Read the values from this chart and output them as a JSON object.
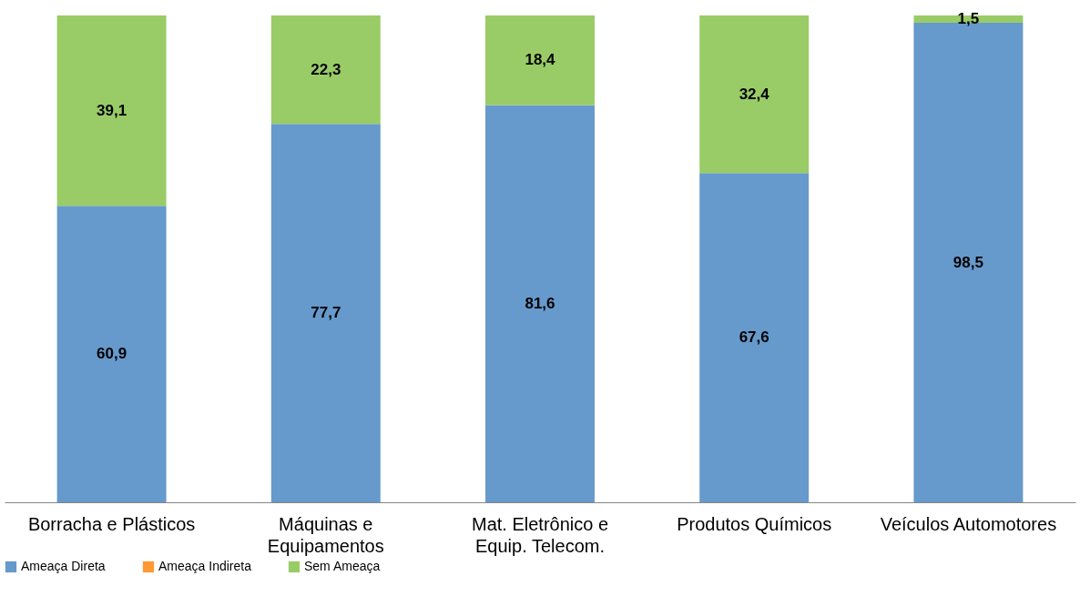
{
  "chart_data": {
    "type": "bar",
    "stacked": true,
    "categories": [
      "Borracha e Plásticos",
      "Máquinas e Equipamentos",
      "Mat. Eletrônico e Equip. Telecom.",
      "Produtos Químicos",
      "Veículos Automotores"
    ],
    "series": [
      {
        "name": "Ameaça Direta",
        "color": "#6699cc",
        "values": [
          60.9,
          77.7,
          81.6,
          67.6,
          98.5
        ],
        "value_labels": [
          "60,9",
          "77,7",
          "81,6",
          "67,6",
          "98,5"
        ]
      },
      {
        "name": "Ameaça Indireta",
        "color": "#ff9933",
        "values": [
          0,
          0,
          0,
          0,
          0
        ],
        "value_labels": [
          null,
          null,
          null,
          null,
          null
        ]
      },
      {
        "name": "Sem Ameaça",
        "color": "#99cc66",
        "values": [
          39.1,
          22.3,
          18.4,
          32.4,
          1.5
        ],
        "value_labels": [
          "39,1",
          "22,3",
          "18,4",
          "32,4",
          "1,5"
        ]
      }
    ],
    "legend": "bottom",
    "grid": false
  }
}
